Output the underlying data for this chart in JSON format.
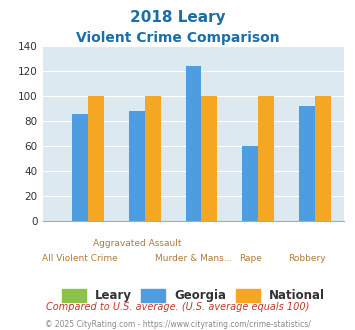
{
  "title_line1": "2018 Leary",
  "title_line2": "Violent Crime Comparison",
  "leary": [
    0,
    0,
    0,
    0,
    0
  ],
  "georgia": [
    86,
    88,
    124,
    60,
    92
  ],
  "national": [
    100,
    100,
    100,
    100,
    100
  ],
  "group_top_labels": [
    "",
    "Aggravated Assault",
    "",
    "",
    ""
  ],
  "group_bot_labels": [
    "All Violent Crime",
    "",
    "Murder & Mans...",
    "Rape",
    "Robbery"
  ],
  "color_leary": "#8bc34a",
  "color_georgia": "#4d9de0",
  "color_national": "#f5a623",
  "bg_color": "#dce9f0",
  "title_color": "#1a6fa8",
  "label_color": "#b07a3a",
  "ylim": [
    0,
    140
  ],
  "yticks": [
    0,
    20,
    40,
    60,
    80,
    100,
    120,
    140
  ],
  "footnote1": "Compared to U.S. average. (U.S. average equals 100)",
  "footnote2": "© 2025 CityRating.com - https://www.cityrating.com/crime-statistics/",
  "footnote1_color": "#c0392b",
  "footnote2_color": "#888888",
  "legend_labels": [
    "Leary",
    "Georgia",
    "National"
  ]
}
